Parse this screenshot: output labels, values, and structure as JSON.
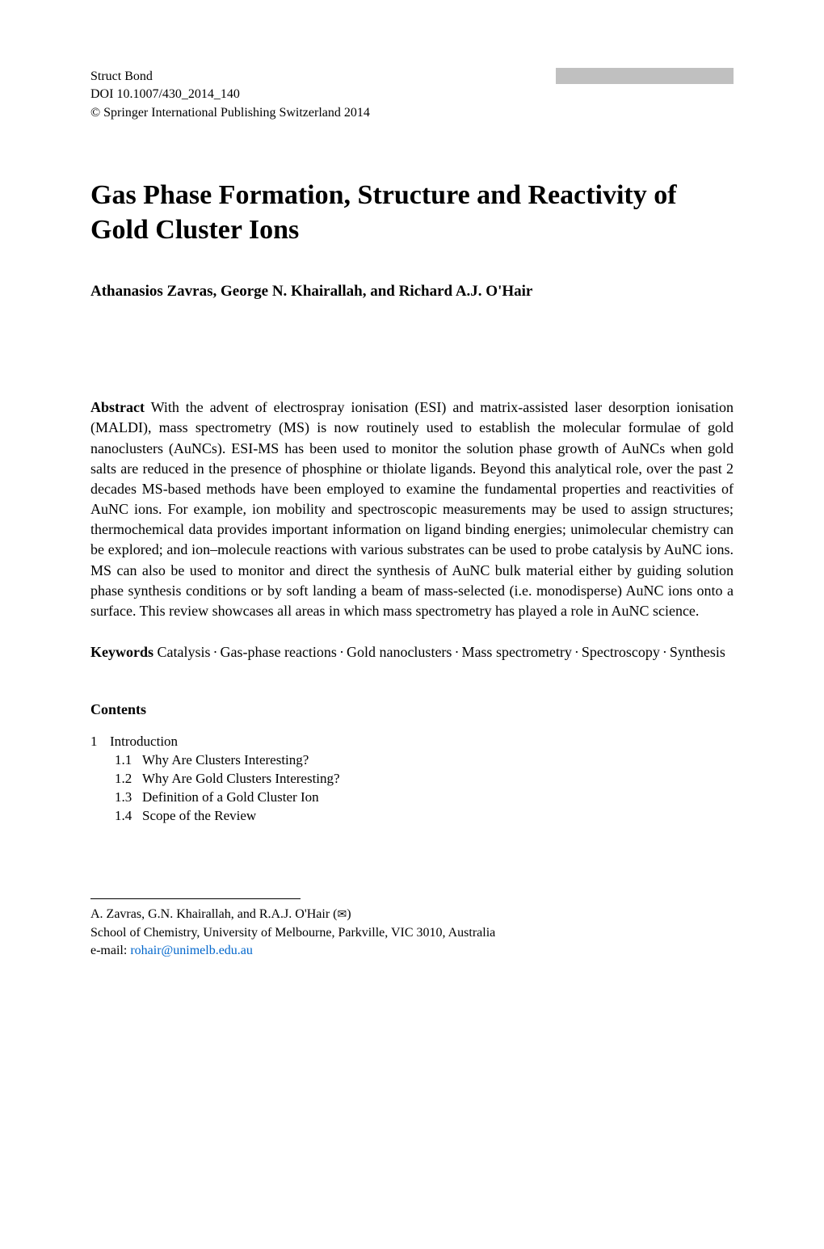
{
  "meta": {
    "journal": "Struct Bond",
    "doi": "DOI 10.1007/430_2014_140",
    "copyright": "© Springer International Publishing Switzerland 2014"
  },
  "title": "Gas Phase Formation, Structure and Reactivity of Gold Cluster Ions",
  "authors": "Athanasios Zavras, George N. Khairallah, and Richard A.J. O'Hair",
  "abstract": {
    "label": "Abstract",
    "text": " With the advent of electrospray ionisation (ESI) and matrix-assisted laser desorption ionisation (MALDI), mass spectrometry (MS) is now routinely used to establish the molecular formulae of gold nanoclusters (AuNCs). ESI-MS has been used to monitor the solution phase growth of AuNCs when gold salts are reduced in the presence of phosphine or thiolate ligands. Beyond this analytical role, over the past 2 decades MS-based methods have been employed to examine the fundamental properties and reactivities of AuNC ions. For example, ion mobility and spectroscopic measurements may be used to assign structures; thermochemical data provides important information on ligand binding energies; unimolecular chemistry can be explored; and ion–molecule reactions with various substrates can be used to probe catalysis by AuNC ions. MS can also be used to monitor and direct the synthesis of AuNC bulk material either by guiding solution phase synthesis conditions or by soft landing a beam of mass-selected (i.e. monodisperse) AuNC ions onto a surface. This review showcases all areas in which mass spectrometry has played a role in AuNC science."
  },
  "keywords": {
    "label": "Keywords",
    "items": [
      "Catalysis",
      "Gas-phase reactions",
      "Gold nanoclusters",
      "Mass spectrometry",
      "Spectroscopy",
      "Synthesis"
    ],
    "separator": "·"
  },
  "contents": {
    "heading": "Contents",
    "l1": {
      "num": "1",
      "title": "Introduction"
    },
    "l2": [
      {
        "num": "1.1",
        "title": "Why Are Clusters Interesting?"
      },
      {
        "num": "1.2",
        "title": "Why Are Gold Clusters Interesting?"
      },
      {
        "num": "1.3",
        "title": "Definition of a Gold Cluster Ion"
      },
      {
        "num": "1.4",
        "title": "Scope of the Review"
      }
    ]
  },
  "footer": {
    "authors_line": "A. Zavras, G.N. Khairallah, and R.A.J. O'Hair (",
    "authors_line_close": ")",
    "corresponding_symbol": "✉",
    "affiliation": "School of Chemistry, University of Melbourne, Parkville, VIC 3010, Australia",
    "email_label": "e-mail: ",
    "email": "rohair@unimelb.edu.au"
  },
  "colors": {
    "text": "#000000",
    "background": "#ffffff",
    "link": "#0066cc",
    "redaction": "#c0c0c0"
  }
}
